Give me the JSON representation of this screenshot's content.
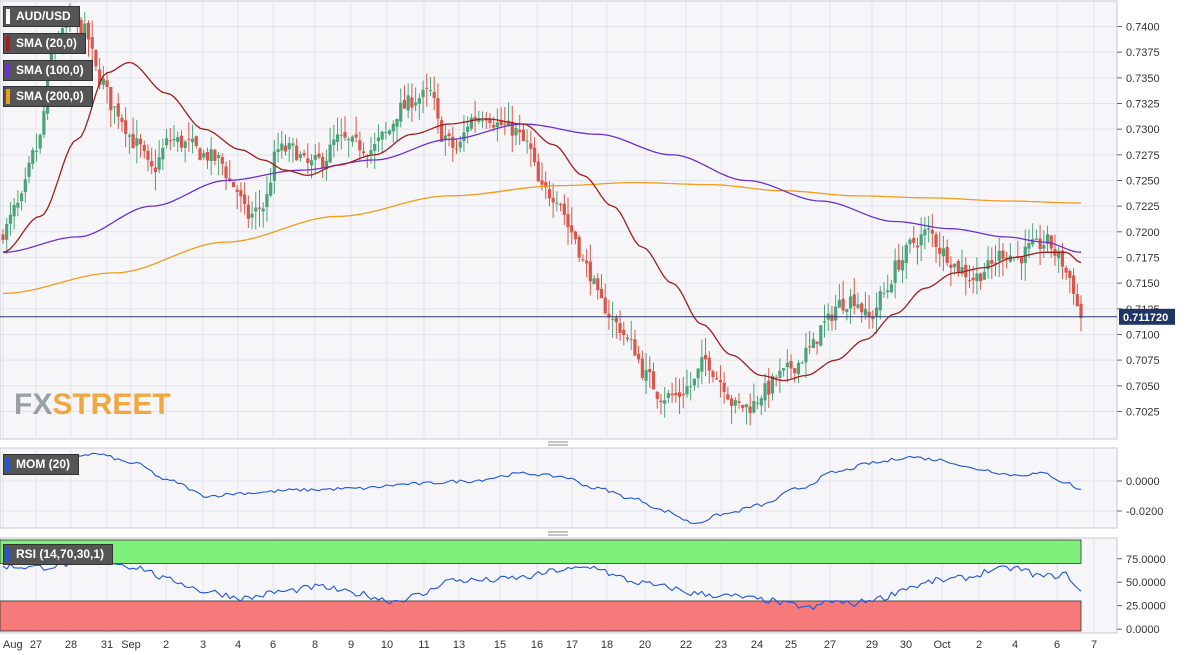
{
  "symbol": "AUD/USD",
  "legends": {
    "sma20": "SMA (20,0)",
    "sma100": "SMA (100,0)",
    "sma200": "SMA (200,0)",
    "mom": "MOM (20)",
    "rsi": "RSI (14,70,30,1)"
  },
  "logo": {
    "fx": "FX",
    "street": "STREET"
  },
  "colors": {
    "bull": "#4ca37a",
    "bear": "#d9574a",
    "sma20": "#a01e1e",
    "sma100": "#6a30d8",
    "sma200": "#f39b1c",
    "mom": "#2255dd",
    "rsi": "#2255dd",
    "rsi_over": "#7ef07a",
    "rsi_under": "#f77a7a"
  },
  "chart_data": [
    {
      "type": "candlestick",
      "title": "AUD/USD",
      "y_ticks": [
        "0.7400",
        "0.7375",
        "0.7350",
        "0.7325",
        "0.7300",
        "0.7275",
        "0.7250",
        "0.7225",
        "0.7200",
        "0.7175",
        "0.7150",
        "0.7125",
        "0.7100",
        "0.7075",
        "0.7050",
        "0.7025"
      ],
      "ylim": [
        0.7003,
        0.742
      ],
      "current_price": "0.711720",
      "x_tick_labels": [
        "Aug",
        "27",
        "28",
        "31",
        "Sep",
        "2",
        "3",
        "4",
        "6",
        "8",
        "9",
        "10",
        "11",
        "13",
        "15",
        "16",
        "17",
        "18",
        "20",
        "22",
        "23",
        "24",
        "25",
        "27",
        "29",
        "30",
        "Oct",
        "2",
        "4",
        "6",
        "7"
      ],
      "close_anchors": [
        [
          0,
          0.72
        ],
        [
          4,
          0.7225
        ],
        [
          9,
          0.728
        ],
        [
          14,
          0.7385
        ],
        [
          19,
          0.7405
        ],
        [
          22,
          0.7395
        ],
        [
          26,
          0.735
        ],
        [
          30,
          0.732
        ],
        [
          36,
          0.7285
        ],
        [
          40,
          0.726
        ],
        [
          45,
          0.729
        ],
        [
          50,
          0.7285
        ],
        [
          54,
          0.7275
        ],
        [
          58,
          0.727
        ],
        [
          62,
          0.7245
        ],
        [
          66,
          0.7215
        ],
        [
          70,
          0.7225
        ],
        [
          74,
          0.728
        ],
        [
          78,
          0.728
        ],
        [
          82,
          0.7265
        ],
        [
          86,
          0.727
        ],
        [
          90,
          0.729
        ],
        [
          95,
          0.7285
        ],
        [
          99,
          0.728
        ],
        [
          103,
          0.7295
        ],
        [
          107,
          0.732
        ],
        [
          111,
          0.733
        ],
        [
          115,
          0.7335
        ],
        [
          118,
          0.7295
        ],
        [
          122,
          0.728
        ],
        [
          126,
          0.731
        ],
        [
          130,
          0.7315
        ],
        [
          133,
          0.7305
        ],
        [
          137,
          0.73
        ],
        [
          141,
          0.7285
        ],
        [
          145,
          0.724
        ],
        [
          149,
          0.7235
        ],
        [
          153,
          0.72
        ],
        [
          157,
          0.7165
        ],
        [
          161,
          0.713
        ],
        [
          165,
          0.711
        ],
        [
          169,
          0.709
        ],
        [
          173,
          0.706
        ],
        [
          177,
          0.704
        ],
        [
          181,
          0.704
        ],
        [
          185,
          0.705
        ],
        [
          189,
          0.7075
        ],
        [
          193,
          0.7055
        ],
        [
          197,
          0.703
        ],
        [
          201,
          0.703
        ],
        [
          205,
          0.7045
        ],
        [
          209,
          0.706
        ],
        [
          213,
          0.707
        ],
        [
          217,
          0.7085
        ],
        [
          221,
          0.711
        ],
        [
          225,
          0.713
        ],
        [
          229,
          0.7135
        ],
        [
          233,
          0.7115
        ],
        [
          237,
          0.714
        ],
        [
          241,
          0.717
        ],
        [
          245,
          0.719
        ],
        [
          249,
          0.72
        ],
        [
          253,
          0.718
        ],
        [
          257,
          0.7165
        ],
        [
          261,
          0.7155
        ],
        [
          265,
          0.7165
        ],
        [
          269,
          0.718
        ],
        [
          273,
          0.7175
        ],
        [
          277,
          0.7185
        ],
        [
          281,
          0.719
        ],
        [
          284,
          0.7175
        ],
        [
          287,
          0.7155
        ],
        [
          290,
          0.7117
        ]
      ],
      "sma20_anchors": [
        [
          0,
          0.718
        ],
        [
          10,
          0.7215
        ],
        [
          20,
          0.729
        ],
        [
          28,
          0.7355
        ],
        [
          34,
          0.7365
        ],
        [
          44,
          0.7335
        ],
        [
          54,
          0.73
        ],
        [
          64,
          0.728
        ],
        [
          70,
          0.727
        ],
        [
          76,
          0.726
        ],
        [
          82,
          0.7255
        ],
        [
          90,
          0.7265
        ],
        [
          100,
          0.7275
        ],
        [
          110,
          0.7295
        ],
        [
          120,
          0.7305
        ],
        [
          130,
          0.731
        ],
        [
          140,
          0.7305
        ],
        [
          148,
          0.7285
        ],
        [
          156,
          0.7255
        ],
        [
          164,
          0.7225
        ],
        [
          172,
          0.7185
        ],
        [
          180,
          0.715
        ],
        [
          188,
          0.711
        ],
        [
          196,
          0.708
        ],
        [
          204,
          0.706
        ],
        [
          210,
          0.7055
        ],
        [
          216,
          0.706
        ],
        [
          224,
          0.7075
        ],
        [
          232,
          0.7095
        ],
        [
          240,
          0.712
        ],
        [
          248,
          0.7145
        ],
        [
          256,
          0.716
        ],
        [
          264,
          0.7165
        ],
        [
          272,
          0.7175
        ],
        [
          280,
          0.718
        ],
        [
          286,
          0.718
        ],
        [
          290,
          0.717
        ]
      ],
      "sma100_anchors": [
        [
          0,
          0.718
        ],
        [
          20,
          0.7195
        ],
        [
          40,
          0.7225
        ],
        [
          60,
          0.725
        ],
        [
          80,
          0.726
        ],
        [
          100,
          0.727
        ],
        [
          120,
          0.729
        ],
        [
          140,
          0.7305
        ],
        [
          160,
          0.7295
        ],
        [
          180,
          0.7275
        ],
        [
          200,
          0.725
        ],
        [
          220,
          0.723
        ],
        [
          240,
          0.721
        ],
        [
          255,
          0.7203
        ],
        [
          270,
          0.7195
        ],
        [
          280,
          0.719
        ],
        [
          290,
          0.718
        ]
      ],
      "sma200_anchors": [
        [
          0,
          0.714
        ],
        [
          30,
          0.716
        ],
        [
          60,
          0.719
        ],
        [
          90,
          0.7215
        ],
        [
          120,
          0.7235
        ],
        [
          150,
          0.7245
        ],
        [
          170,
          0.7248
        ],
        [
          190,
          0.7246
        ],
        [
          210,
          0.724
        ],
        [
          230,
          0.7235
        ],
        [
          250,
          0.7233
        ],
        [
          270,
          0.723
        ],
        [
          290,
          0.7228
        ]
      ]
    },
    {
      "type": "line",
      "title": "MOM (20)",
      "y_ticks": [
        "0.0000",
        "-0.0200"
      ],
      "ylim": [
        -0.03,
        0.02
      ],
      "anchors": [
        [
          0,
          0.01
        ],
        [
          15,
          0.0155
        ],
        [
          25,
          0.018
        ],
        [
          35,
          0.012
        ],
        [
          45,
          0.0
        ],
        [
          55,
          -0.01
        ],
        [
          65,
          -0.008
        ],
        [
          80,
          -0.006
        ],
        [
          95,
          -0.005
        ],
        [
          110,
          -0.002
        ],
        [
          125,
          0.0
        ],
        [
          140,
          0.005
        ],
        [
          150,
          0.003
        ],
        [
          160,
          -0.005
        ],
        [
          170,
          -0.012
        ],
        [
          178,
          -0.02
        ],
        [
          186,
          -0.028
        ],
        [
          194,
          -0.022
        ],
        [
          204,
          -0.016
        ],
        [
          214,
          -0.005
        ],
        [
          224,
          0.006
        ],
        [
          234,
          0.012
        ],
        [
          244,
          0.016
        ],
        [
          252,
          0.014
        ],
        [
          262,
          0.008
        ],
        [
          272,
          0.004
        ],
        [
          280,
          0.005
        ],
        [
          286,
          -0.001
        ],
        [
          290,
          -0.006
        ]
      ]
    },
    {
      "type": "line",
      "title": "RSI (14,70,30,1)",
      "y_ticks": [
        "75.0000",
        "50.0000",
        "25.0000",
        "0.0000"
      ],
      "ylim": [
        -2,
        95
      ],
      "overbought": 70,
      "oversold": 30,
      "anchors": [
        [
          0,
          67
        ],
        [
          10,
          66
        ],
        [
          20,
          70
        ],
        [
          28,
          72
        ],
        [
          36,
          66
        ],
        [
          45,
          52
        ],
        [
          55,
          40
        ],
        [
          65,
          33
        ],
        [
          75,
          40
        ],
        [
          85,
          45
        ],
        [
          95,
          38
        ],
        [
          105,
          30
        ],
        [
          112,
          36
        ],
        [
          120,
          52
        ],
        [
          130,
          52
        ],
        [
          140,
          55
        ],
        [
          150,
          63
        ],
        [
          160,
          66
        ],
        [
          165,
          56
        ],
        [
          170,
          50
        ],
        [
          178,
          45
        ],
        [
          186,
          38
        ],
        [
          196,
          35
        ],
        [
          205,
          31
        ],
        [
          212,
          26
        ],
        [
          218,
          22
        ],
        [
          222,
          30
        ],
        [
          228,
          27
        ],
        [
          236,
          33
        ],
        [
          244,
          45
        ],
        [
          252,
          52
        ],
        [
          260,
          55
        ],
        [
          266,
          63
        ],
        [
          272,
          65
        ],
        [
          280,
          56
        ],
        [
          286,
          58
        ],
        [
          290,
          40
        ]
      ]
    }
  ]
}
